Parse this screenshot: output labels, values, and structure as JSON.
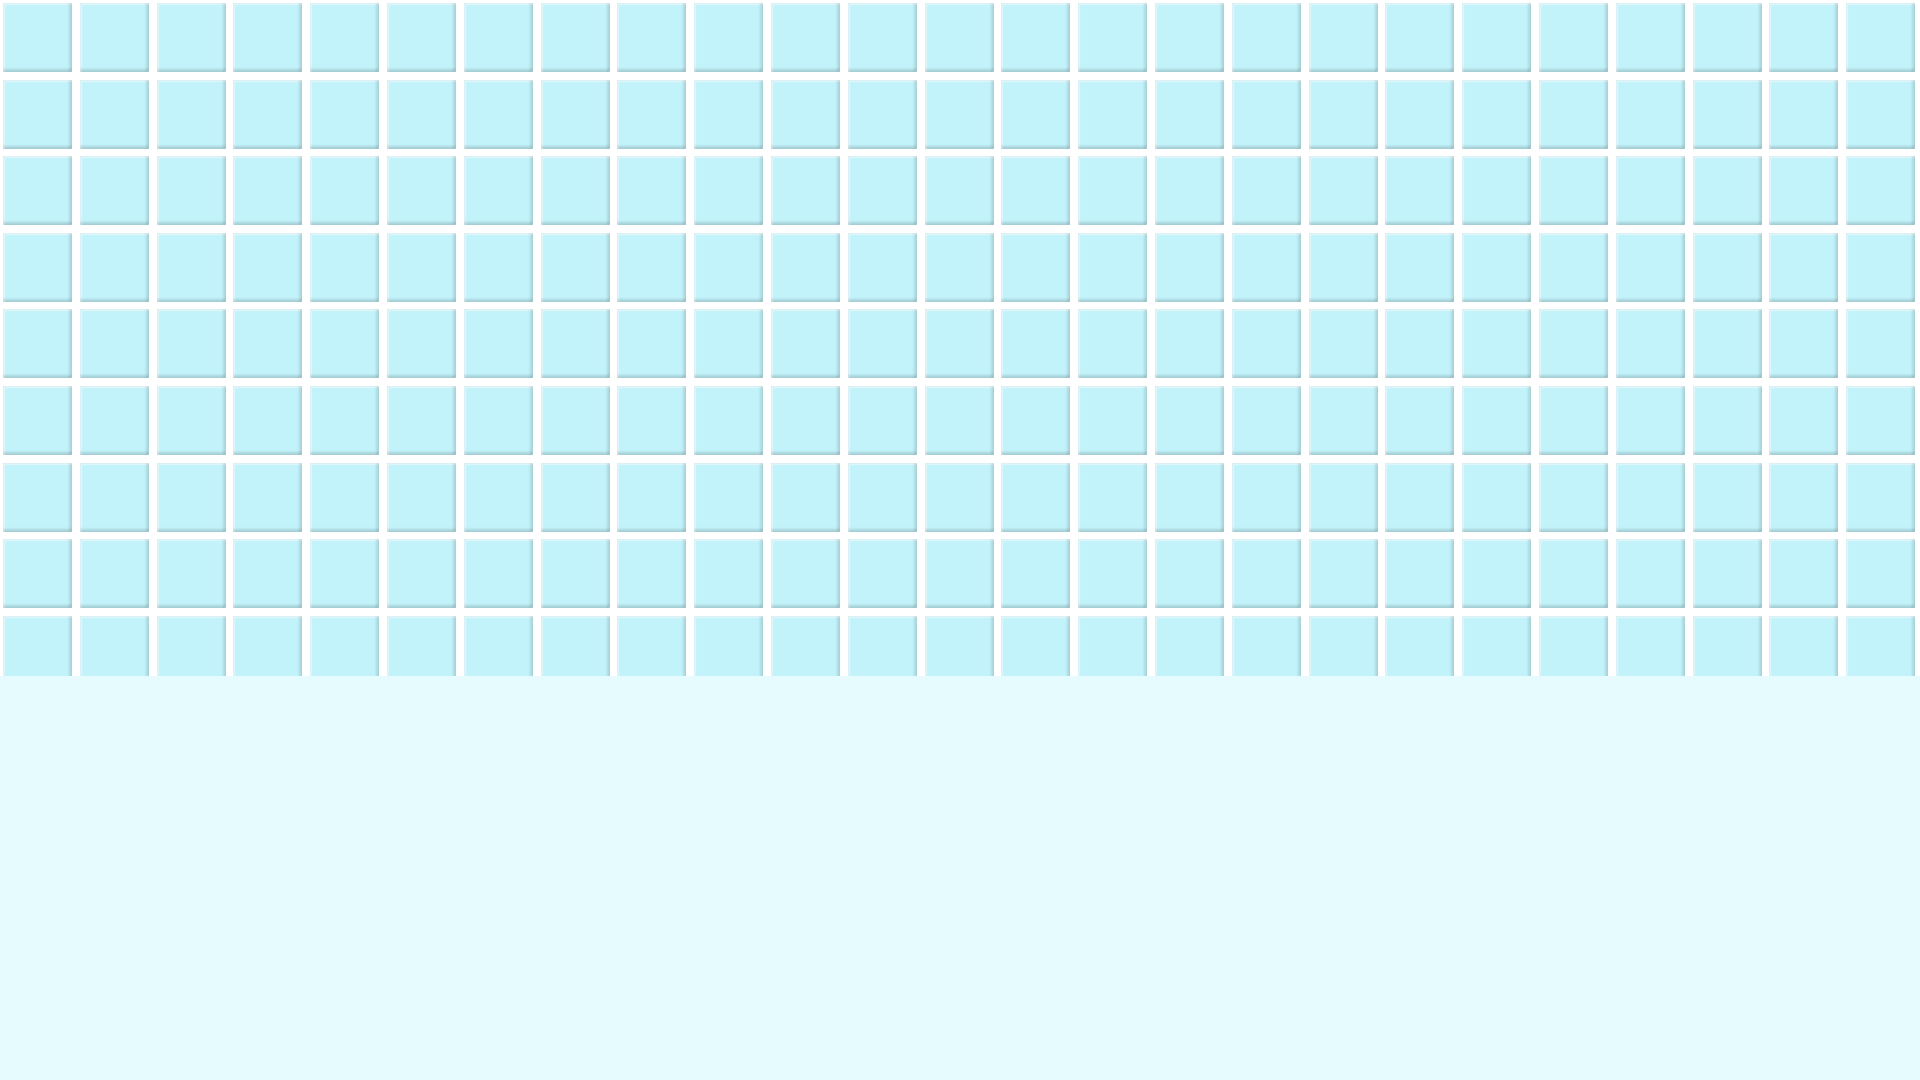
{
  "grid": {
    "columns": 25,
    "rows": 9,
    "tile_count": 225,
    "tile_state": "unrevealed"
  },
  "colors": {
    "tile": "#c2f2fa",
    "grid_line": "#ffffff",
    "background": "#e6fbfe"
  }
}
